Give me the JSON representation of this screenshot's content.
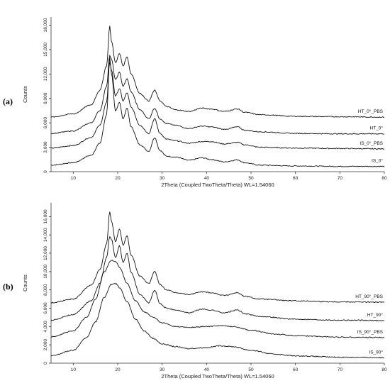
{
  "chart_data": [
    {
      "type": "line",
      "panel_label": "(a)",
      "xlabel": "2Theta (Coupled TwoTheta/Theta) WL=1.54060",
      "ylabel": "Counts",
      "xlim": [
        5,
        80
      ],
      "ylim": [
        0,
        19000
      ],
      "x_ticks": [
        10,
        20,
        30,
        40,
        50,
        60,
        70,
        80
      ],
      "y_ticks": [
        0,
        3000,
        6000,
        9000,
        12000,
        15000,
        18000
      ],
      "y_tick_labels": [
        "0",
        "3,000",
        "6,000",
        "9,000",
        "12,000",
        "15,000",
        "18,000"
      ],
      "series": [
        {
          "name": "IS_0°",
          "points": [
            [
              5,
              800
            ],
            [
              10,
              1100
            ],
            [
              14,
              2000
            ],
            [
              16,
              3500
            ],
            [
              17.5,
              7000
            ],
            [
              18.2,
              14000
            ],
            [
              18.6,
              12000
            ],
            [
              19.5,
              7500
            ],
            [
              20.4,
              8500
            ],
            [
              21.2,
              6500
            ],
            [
              22.1,
              7800
            ],
            [
              23,
              5500
            ],
            [
              25,
              3300
            ],
            [
              27,
              2500
            ],
            [
              28.3,
              4200
            ],
            [
              29.5,
              2600
            ],
            [
              31,
              1900
            ],
            [
              33,
              1800
            ],
            [
              36,
              1400
            ],
            [
              39,
              1700
            ],
            [
              41,
              1500
            ],
            [
              44,
              1200
            ],
            [
              47,
              1450
            ],
            [
              48.5,
              1100
            ],
            [
              52,
              800
            ],
            [
              60,
              700
            ],
            [
              70,
              650
            ],
            [
              80,
              650
            ]
          ]
        },
        {
          "name": "IS_0°_PBS",
          "points": [
            [
              5,
              2900
            ],
            [
              10,
              3200
            ],
            [
              14,
              4200
            ],
            [
              16,
              5700
            ],
            [
              17.5,
              8500
            ],
            [
              18.2,
              13500
            ],
            [
              18.6,
              12500
            ],
            [
              19.5,
              9300
            ],
            [
              20.4,
              10200
            ],
            [
              21.2,
              8700
            ],
            [
              22.1,
              9700
            ],
            [
              23,
              7900
            ],
            [
              25,
              5700
            ],
            [
              27,
              4700
            ],
            [
              28.3,
              6500
            ],
            [
              29.5,
              4700
            ],
            [
              31,
              4000
            ],
            [
              33,
              3800
            ],
            [
              36,
              3500
            ],
            [
              39,
              3700
            ],
            [
              41,
              3700
            ],
            [
              44,
              3400
            ],
            [
              47,
              3600
            ],
            [
              48.5,
              3300
            ],
            [
              52,
              3000
            ],
            [
              60,
              2900
            ],
            [
              70,
              2850
            ],
            [
              80,
              2800
            ]
          ]
        },
        {
          "name": "HT_0°",
          "points": [
            [
              5,
              4700
            ],
            [
              10,
              5000
            ],
            [
              14,
              6000
            ],
            [
              16,
              7500
            ],
            [
              17.5,
              10500
            ],
            [
              18.2,
              14300
            ],
            [
              18.6,
              13800
            ],
            [
              19.5,
              11300
            ],
            [
              20.4,
              12200
            ],
            [
              21.2,
              10500
            ],
            [
              22.1,
              11400
            ],
            [
              23,
              9800
            ],
            [
              25,
              7600
            ],
            [
              27,
              6500
            ],
            [
              28.3,
              7800
            ],
            [
              29.5,
              6500
            ],
            [
              31,
              5900
            ],
            [
              33,
              5700
            ],
            [
              36,
              5300
            ],
            [
              39,
              5600
            ],
            [
              41,
              5500
            ],
            [
              44,
              5200
            ],
            [
              47,
              5500
            ],
            [
              48.5,
              5100
            ],
            [
              52,
              4900
            ],
            [
              60,
              4700
            ],
            [
              70,
              4650
            ],
            [
              80,
              4650
            ]
          ]
        },
        {
          "name": "HT_0°_PBS",
          "points": [
            [
              5,
              6700
            ],
            [
              10,
              7100
            ],
            [
              14,
              8200
            ],
            [
              16,
              10000
            ],
            [
              17.5,
              13000
            ],
            [
              18.2,
              17900
            ],
            [
              18.6,
              16000
            ],
            [
              19.5,
              13400
            ],
            [
              20.4,
              14500
            ],
            [
              21.2,
              13000
            ],
            [
              22.1,
              14100
            ],
            [
              23,
              12000
            ],
            [
              25,
              9600
            ],
            [
              27,
              8700
            ],
            [
              28.3,
              10000
            ],
            [
              29.5,
              8700
            ],
            [
              31,
              8000
            ],
            [
              33,
              7600
            ],
            [
              36,
              7400
            ],
            [
              39,
              7800
            ],
            [
              41,
              7700
            ],
            [
              44,
              7400
            ],
            [
              47,
              7700
            ],
            [
              48.5,
              7300
            ],
            [
              52,
              7000
            ],
            [
              60,
              6800
            ],
            [
              70,
              6750
            ],
            [
              80,
              6700
            ]
          ]
        }
      ]
    },
    {
      "type": "line",
      "panel_label": "(b)",
      "xlabel": "2Theta (Coupled TwoTheta/Theta) WL=1.54060",
      "ylabel": "Counts",
      "xlim": [
        5,
        80
      ],
      "ylim": [
        0,
        17500
      ],
      "x_ticks": [
        10,
        20,
        30,
        40,
        50,
        60,
        70,
        80
      ],
      "y_ticks": [
        0,
        2000,
        4000,
        6000,
        8000,
        10000,
        12000,
        14000,
        16000
      ],
      "y_tick_labels": [
        "0",
        "2,000",
        "4,000",
        "6,000",
        "8,000",
        "10,000",
        "12,000",
        "14,000",
        "16,000"
      ],
      "series": [
        {
          "name": "IS_90°",
          "points": [
            [
              5,
              800
            ],
            [
              10,
              1400
            ],
            [
              13,
              2800
            ],
            [
              15,
              4500
            ],
            [
              17,
              7200
            ],
            [
              18.5,
              8600
            ],
            [
              19.5,
              8700
            ],
            [
              20.5,
              8200
            ],
            [
              22,
              6800
            ],
            [
              24,
              4800
            ],
            [
              26,
              3500
            ],
            [
              28,
              2700
            ],
            [
              30,
              2100
            ],
            [
              33,
              1800
            ],
            [
              36,
              1600
            ],
            [
              40,
              1700
            ],
            [
              43,
              1900
            ],
            [
              46,
              1800
            ],
            [
              50,
              1400
            ],
            [
              55,
              1000
            ],
            [
              60,
              800
            ],
            [
              70,
              650
            ],
            [
              80,
              600
            ]
          ]
        },
        {
          "name": "IS_90°_PBS",
          "points": [
            [
              5,
              2900
            ],
            [
              10,
              3500
            ],
            [
              13,
              5000
            ],
            [
              15,
              7000
            ],
            [
              17,
              10000
            ],
            [
              18.5,
              11200
            ],
            [
              19.5,
              11100
            ],
            [
              20.5,
              10400
            ],
            [
              22,
              8800
            ],
            [
              24,
              6800
            ],
            [
              26,
              5600
            ],
            [
              28,
              5000
            ],
            [
              30,
              4400
            ],
            [
              33,
              4000
            ],
            [
              36,
              3900
            ],
            [
              40,
              4000
            ],
            [
              43,
              4100
            ],
            [
              46,
              4000
            ],
            [
              50,
              3600
            ],
            [
              55,
              3200
            ],
            [
              60,
              3000
            ],
            [
              70,
              2850
            ],
            [
              80,
              2800
            ]
          ]
        },
        {
          "name": "HT_90°",
          "points": [
            [
              5,
              4700
            ],
            [
              10,
              5300
            ],
            [
              14,
              6800
            ],
            [
              16,
              8700
            ],
            [
              17.5,
              11500
            ],
            [
              18.2,
              13800
            ],
            [
              18.6,
              13500
            ],
            [
              19.5,
              11500
            ],
            [
              20.4,
              12800
            ],
            [
              21.2,
              11000
            ],
            [
              22.1,
              12000
            ],
            [
              23,
              9900
            ],
            [
              25,
              7500
            ],
            [
              27,
              6600
            ],
            [
              28.3,
              8000
            ],
            [
              29.5,
              6500
            ],
            [
              31,
              6000
            ],
            [
              33,
              5800
            ],
            [
              36,
              5500
            ],
            [
              39,
              5900
            ],
            [
              41,
              5800
            ],
            [
              44,
              5500
            ],
            [
              47,
              5800
            ],
            [
              48.5,
              5400
            ],
            [
              52,
              5100
            ],
            [
              60,
              4800
            ],
            [
              70,
              4700
            ],
            [
              80,
              4650
            ]
          ]
        },
        {
          "name": "HT_90°_PBS",
          "points": [
            [
              5,
              6600
            ],
            [
              10,
              7000
            ],
            [
              14,
              8500
            ],
            [
              16,
              10200
            ],
            [
              17.5,
              13000
            ],
            [
              18.2,
              16500
            ],
            [
              18.6,
              15500
            ],
            [
              19.5,
              13300
            ],
            [
              20.4,
              14600
            ],
            [
              21.2,
              12900
            ],
            [
              22.1,
              13900
            ],
            [
              23,
              11800
            ],
            [
              25,
              9500
            ],
            [
              27,
              8700
            ],
            [
              28.3,
              10000
            ],
            [
              29.5,
              8600
            ],
            [
              31,
              8000
            ],
            [
              33,
              7700
            ],
            [
              36,
              7500
            ],
            [
              39,
              7800
            ],
            [
              41,
              7700
            ],
            [
              44,
              7400
            ],
            [
              47,
              7700
            ],
            [
              48.5,
              7300
            ],
            [
              52,
              7000
            ],
            [
              60,
              6800
            ],
            [
              70,
              6700
            ],
            [
              80,
              6650
            ]
          ]
        }
      ]
    }
  ]
}
